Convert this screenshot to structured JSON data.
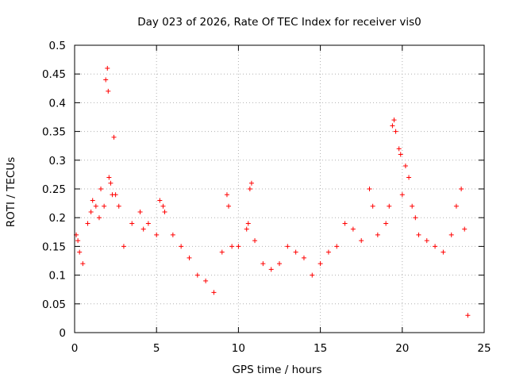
{
  "chart_data": {
    "type": "scatter",
    "title": "Day 023 of 2026, Rate Of TEC Index for receiver vis0",
    "xlabel": "GPS time / hours",
    "ylabel": "ROTI / TECUs",
    "xlim": [
      0,
      25
    ],
    "ylim": [
      0,
      0.5
    ],
    "xticks": [
      0,
      5,
      10,
      15,
      20,
      25
    ],
    "yticks": [
      0,
      0.05,
      0.1,
      0.15,
      0.2,
      0.25,
      0.3,
      0.35,
      0.4,
      0.45,
      0.5
    ],
    "xtick_labels": [
      "0",
      "5",
      "10",
      "15",
      "20",
      "25"
    ],
    "ytick_labels": [
      "0",
      "0.05",
      "0.1",
      "0.15",
      "0.2",
      "0.25",
      "0.3",
      "0.35",
      "0.4",
      "0.45",
      "0.5"
    ],
    "grid": true,
    "grid_style": "dotted",
    "marker": "+",
    "marker_color": "#ff0000",
    "data_range": {
      "x": [
        0,
        24
      ],
      "y": [
        0,
        0.465
      ]
    },
    "series": [
      {
        "points": [
          [
            0.1,
            0.17
          ],
          [
            0.2,
            0.16
          ],
          [
            0.3,
            0.14
          ],
          [
            0.5,
            0.12
          ],
          [
            0.8,
            0.19
          ],
          [
            1.0,
            0.21
          ],
          [
            1.1,
            0.23
          ],
          [
            1.3,
            0.22
          ],
          [
            1.5,
            0.2
          ],
          [
            1.6,
            0.25
          ],
          [
            1.8,
            0.22
          ],
          [
            1.9,
            0.44
          ],
          [
            2.0,
            0.46
          ],
          [
            2.05,
            0.42
          ],
          [
            2.1,
            0.27
          ],
          [
            2.2,
            0.26
          ],
          [
            2.3,
            0.24
          ],
          [
            2.4,
            0.34
          ],
          [
            2.5,
            0.24
          ],
          [
            2.7,
            0.22
          ],
          [
            3.0,
            0.15
          ],
          [
            3.5,
            0.19
          ],
          [
            4.0,
            0.21
          ],
          [
            4.2,
            0.18
          ],
          [
            4.5,
            0.19
          ],
          [
            5.0,
            0.17
          ],
          [
            5.2,
            0.23
          ],
          [
            5.4,
            0.22
          ],
          [
            5.5,
            0.21
          ],
          [
            6.0,
            0.17
          ],
          [
            6.5,
            0.15
          ],
          [
            7.0,
            0.13
          ],
          [
            7.5,
            0.1
          ],
          [
            8.0,
            0.09
          ],
          [
            8.5,
            0.07
          ],
          [
            9.0,
            0.14
          ],
          [
            9.3,
            0.24
          ],
          [
            9.4,
            0.22
          ],
          [
            9.6,
            0.15
          ],
          [
            10.0,
            0.15
          ],
          [
            10.5,
            0.18
          ],
          [
            10.6,
            0.19
          ],
          [
            10.7,
            0.25
          ],
          [
            10.8,
            0.26
          ],
          [
            11.0,
            0.16
          ],
          [
            11.5,
            0.12
          ],
          [
            12.0,
            0.11
          ],
          [
            12.5,
            0.12
          ],
          [
            13.0,
            0.15
          ],
          [
            13.5,
            0.14
          ],
          [
            14.0,
            0.13
          ],
          [
            14.5,
            0.1
          ],
          [
            15.0,
            0.12
          ],
          [
            15.5,
            0.14
          ],
          [
            16.0,
            0.15
          ],
          [
            16.5,
            0.19
          ],
          [
            17.0,
            0.18
          ],
          [
            17.5,
            0.16
          ],
          [
            18.0,
            0.25
          ],
          [
            18.2,
            0.22
          ],
          [
            18.5,
            0.17
          ],
          [
            19.0,
            0.19
          ],
          [
            19.2,
            0.22
          ],
          [
            19.4,
            0.36
          ],
          [
            19.5,
            0.37
          ],
          [
            19.6,
            0.35
          ],
          [
            19.8,
            0.32
          ],
          [
            19.9,
            0.31
          ],
          [
            20.0,
            0.24
          ],
          [
            20.2,
            0.29
          ],
          [
            20.4,
            0.27
          ],
          [
            20.6,
            0.22
          ],
          [
            20.8,
            0.2
          ],
          [
            21.0,
            0.17
          ],
          [
            21.5,
            0.16
          ],
          [
            22.0,
            0.15
          ],
          [
            22.5,
            0.14
          ],
          [
            23.0,
            0.17
          ],
          [
            23.3,
            0.22
          ],
          [
            23.6,
            0.25
          ],
          [
            23.8,
            0.18
          ],
          [
            24.0,
            0.03
          ]
        ]
      }
    ]
  }
}
